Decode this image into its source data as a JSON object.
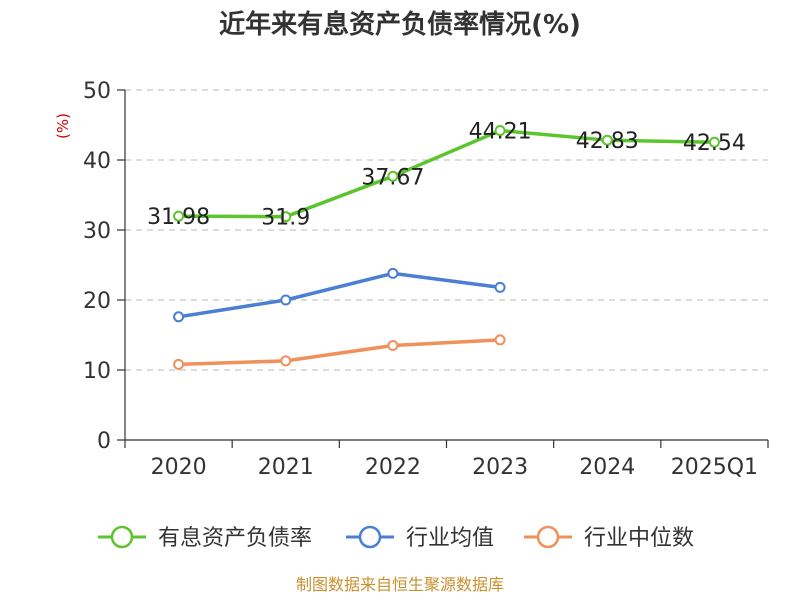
{
  "chart_data": {
    "type": "line",
    "title": "近年来有息资产负债率情况(%)",
    "unit_label": "(%)",
    "categories": [
      "2020",
      "2021",
      "2022",
      "2023",
      "2024",
      "2025Q1"
    ],
    "y_ticks": [
      "0",
      "10",
      "20",
      "30",
      "40",
      "50"
    ],
    "ylim": [
      0,
      50
    ],
    "grid": "horizontal dashed",
    "legend_position": "bottom",
    "series": [
      {
        "name": "有息资产负债率",
        "color": "#5cc42c",
        "values": [
          31.98,
          31.9,
          37.67,
          44.21,
          42.83,
          42.54
        ],
        "labels": [
          "31.98",
          "31.9",
          "37.67",
          "44.21",
          "42.83",
          "42.54"
        ]
      },
      {
        "name": "行业均值",
        "color": "#4a7fd4",
        "values": [
          17.6,
          20.0,
          23.8,
          21.8,
          null,
          null
        ]
      },
      {
        "name": "行业中位数",
        "color": "#f0905a",
        "values": [
          10.8,
          11.3,
          13.5,
          14.3,
          null,
          null
        ]
      }
    ]
  },
  "source": "制图数据来自恒生聚源数据库"
}
